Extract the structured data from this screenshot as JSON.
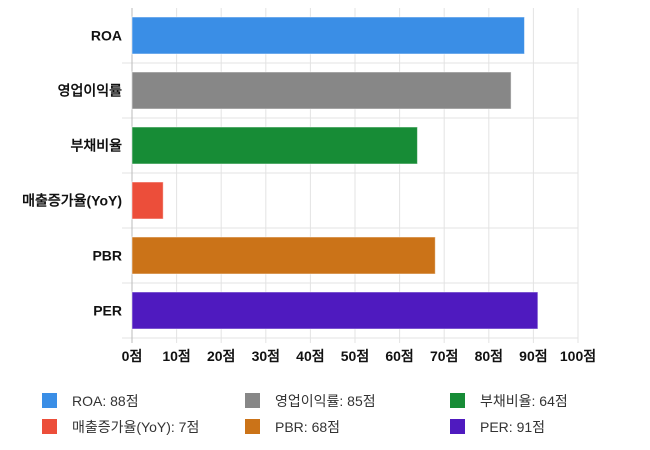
{
  "chart_data": {
    "type": "bar",
    "orientation": "horizontal",
    "categories": [
      "ROA",
      "영업이익률",
      "부채비율",
      "매출증가율(YoY)",
      "PBR",
      "PER"
    ],
    "values": [
      88,
      85,
      64,
      7,
      68,
      91
    ],
    "colors": [
      "#3a8ee6",
      "#878787",
      "#178c36",
      "#ec4e3a",
      "#cb7318",
      "#4f1abf"
    ],
    "xlim": [
      0,
      100
    ],
    "xticks": [
      0,
      10,
      20,
      30,
      40,
      50,
      60,
      70,
      80,
      90,
      100
    ],
    "tick_labels": [
      "0점",
      "10점",
      "20점",
      "30점",
      "40점",
      "50점",
      "60점",
      "70점",
      "80점",
      "90점",
      "100점"
    ],
    "unit": "점",
    "grid": true,
    "legend_position": "bottom",
    "legend": [
      "ROA: 88점",
      "영업이익률: 85점",
      "부채비율: 64점",
      "매출증가율(YoY): 7점",
      "PBR: 68점",
      "PER: 91점"
    ]
  }
}
